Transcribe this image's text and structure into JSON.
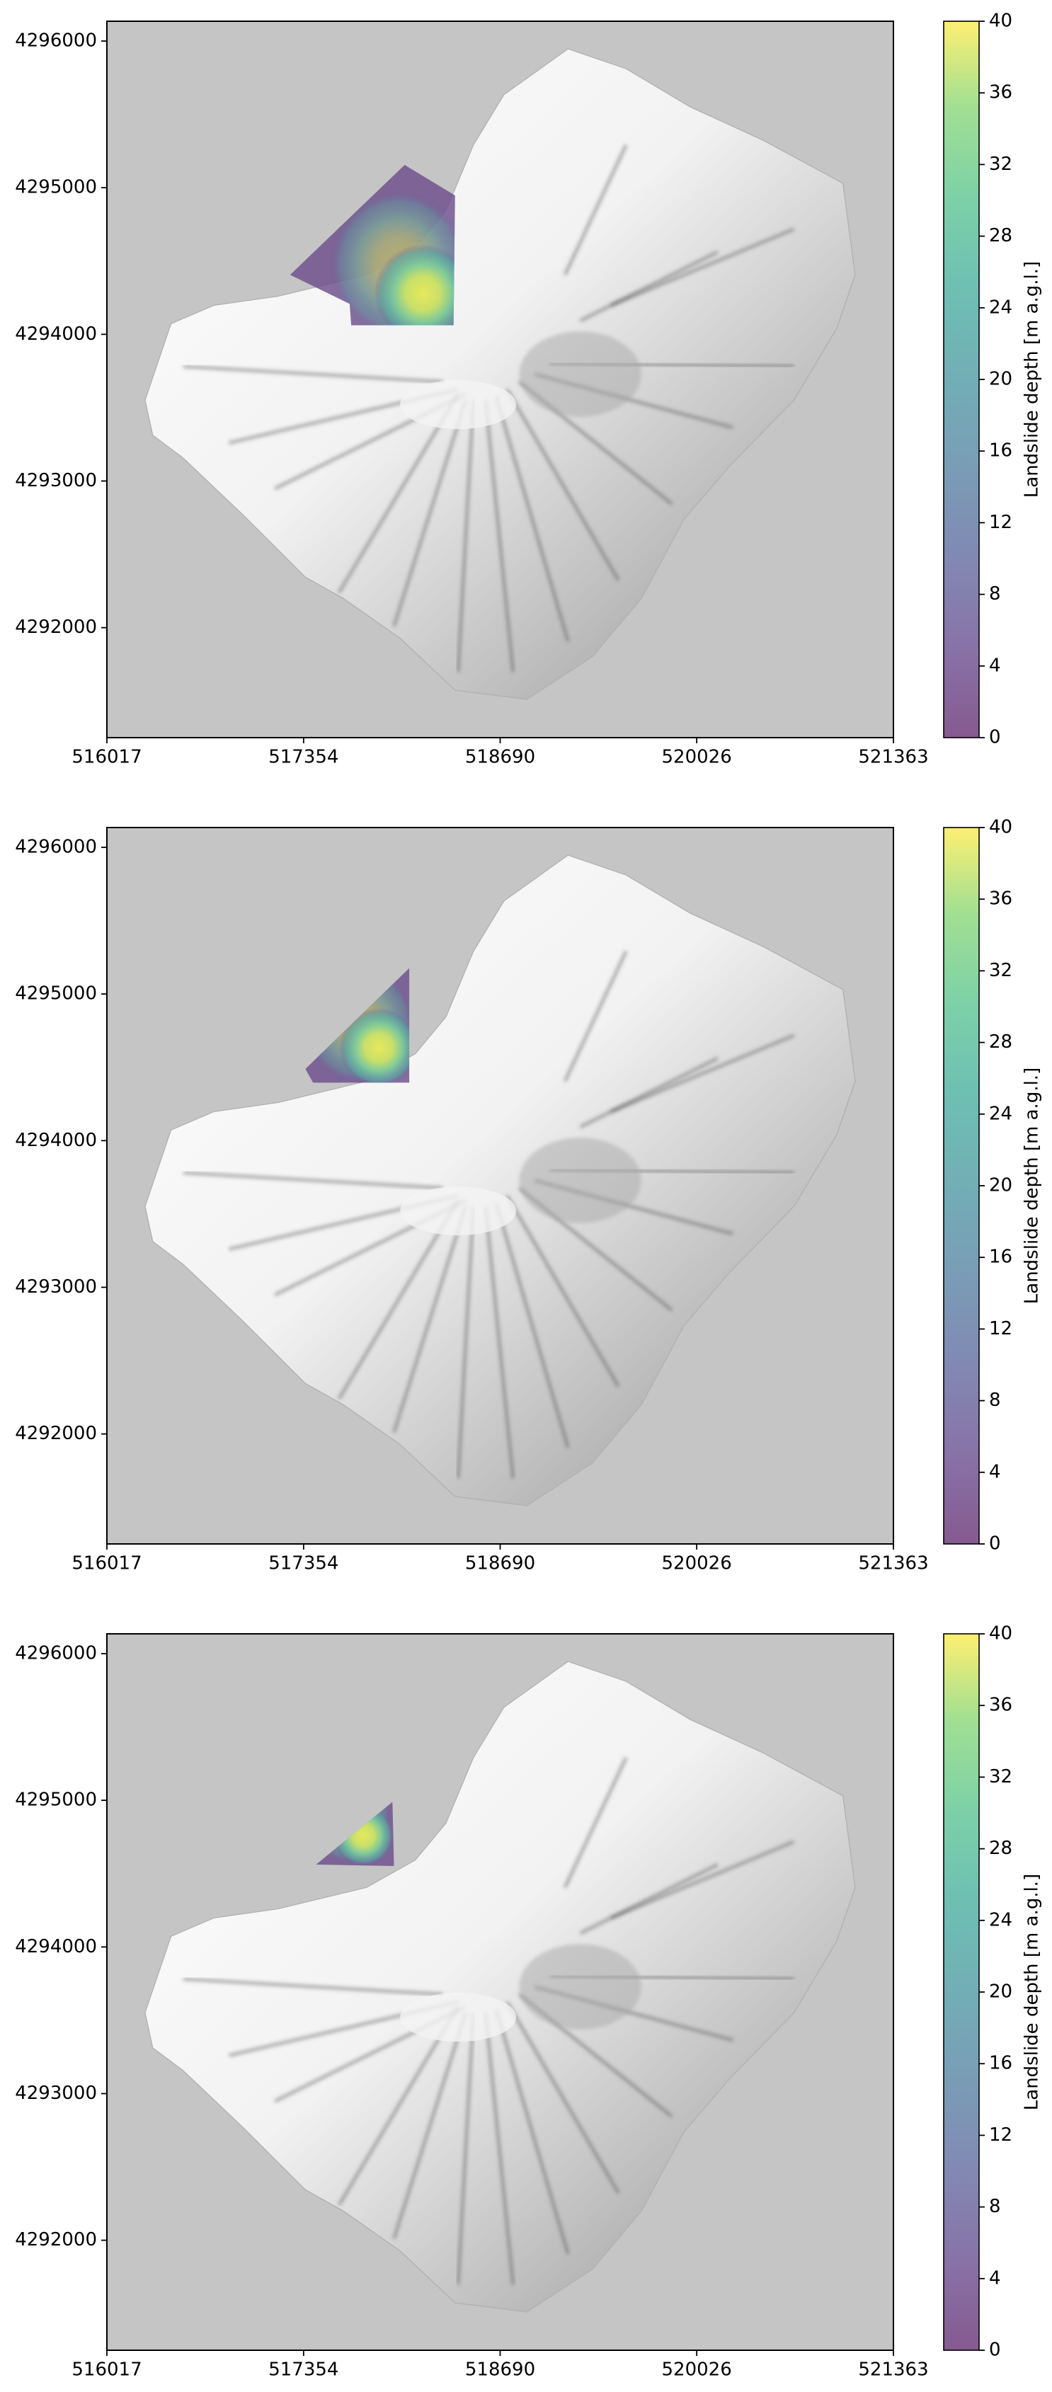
{
  "chart_data": [
    {
      "type": "map",
      "xlim": [
        516017,
        521363
      ],
      "ylim": [
        4291250,
        4296135
      ],
      "xticks": [
        516017,
        517354,
        518690,
        520026,
        521363
      ],
      "yticks": [
        4292000,
        4293000,
        4294000,
        4295000,
        4296000
      ],
      "colorbar": {
        "label": "Landslide depth [m a.g.l.]",
        "lim": [
          0,
          40
        ],
        "ticks": [
          0,
          4,
          8,
          12,
          16,
          20,
          24,
          28,
          32,
          36,
          40
        ]
      }
    },
    {
      "type": "map",
      "xlim": [
        516017,
        521363
      ],
      "ylim": [
        4291250,
        4296135
      ],
      "xticks": [
        516017,
        517354,
        518690,
        520026,
        521363
      ],
      "yticks": [
        4292000,
        4293000,
        4294000,
        4295000,
        4296000
      ],
      "colorbar": {
        "label": "Landslide depth [m a.g.l.]",
        "lim": [
          0,
          40
        ],
        "ticks": [
          0,
          4,
          8,
          12,
          16,
          20,
          24,
          28,
          32,
          36,
          40
        ]
      }
    },
    {
      "type": "map",
      "xlim": [
        516017,
        521363
      ],
      "ylim": [
        4291250,
        4296135
      ],
      "xticks": [
        516017,
        517354,
        518690,
        520026,
        521363
      ],
      "yticks": [
        4292000,
        4293000,
        4294000,
        4295000,
        4296000
      ],
      "colorbar": {
        "label": "Landslide depth [m a.g.l.]",
        "lim": [
          0,
          40
        ],
        "ticks": [
          0,
          4,
          8,
          12,
          16,
          20,
          24,
          28,
          32,
          36,
          40
        ]
      }
    }
  ]
}
